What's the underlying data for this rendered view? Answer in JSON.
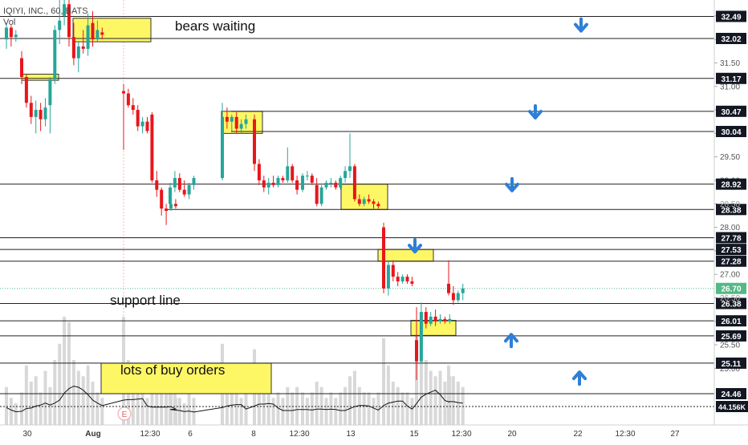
{
  "header": {
    "title": "IQIYI, INC., 60, BATS",
    "volume_label": "Vol"
  },
  "colors": {
    "up": "#26a69a",
    "down": "#e8161c",
    "highlight": "#fdf765",
    "arrow": "#2e7fd6",
    "level": "#222222",
    "axis_text": "#333333",
    "vol": "#d8d8d8",
    "current": "#53b987"
  },
  "chart_data": {
    "type": "candlestick",
    "ylim": [
      24.2,
      32.75
    ],
    "y_ticks": [
      25.0,
      25.5,
      26.0,
      26.5,
      27.0,
      27.5,
      28.0,
      28.5,
      29.0,
      29.5,
      30.0,
      30.5,
      31.0,
      31.5,
      32.0,
      32.5
    ],
    "x_ticks": [
      "30",
      "Aug",
      "12:30",
      "6",
      "8",
      "12:30",
      "13",
      "15",
      "12:30",
      "20",
      "22",
      "12:30",
      "27"
    ],
    "price_levels": [
      32.49,
      32.02,
      31.17,
      30.47,
      30.04,
      28.92,
      28.38,
      27.78,
      27.53,
      27.28,
      26.38,
      26.01,
      25.69,
      25.11,
      24.46
    ],
    "current_price": 26.7,
    "faint_labels": [
      "26.50",
      "28.50"
    ],
    "volume_value": "44.156K",
    "annotations": [
      {
        "text": "bears waiting"
      },
      {
        "text": "support line"
      },
      {
        "text": "lots of buy orders"
      }
    ],
    "arrows": [
      {
        "dir": "down",
        "price": 32.3
      },
      {
        "dir": "down",
        "price": 30.45
      },
      {
        "dir": "down",
        "price": 28.9
      },
      {
        "dir": "down",
        "price": 27.6
      },
      {
        "dir": "up",
        "price": 25.6
      },
      {
        "dir": "up",
        "price": 24.8
      }
    ],
    "zones": [
      {
        "from": 31.95,
        "to": 32.45
      },
      {
        "from": 31.13,
        "to": 31.26
      },
      {
        "from": 30.0,
        "to": 30.47
      },
      {
        "from": 28.38,
        "to": 28.92
      },
      {
        "from": 27.28,
        "to": 27.53
      },
      {
        "from": 25.7,
        "to": 26.02
      }
    ],
    "candles": [
      {
        "o": 32.0,
        "h": 32.35,
        "l": 31.8,
        "c": 32.25
      },
      {
        "o": 32.25,
        "h": 32.3,
        "l": 31.85,
        "c": 32.05
      },
      {
        "o": 32.05,
        "h": 32.2,
        "l": 31.95,
        "c": 32.1
      },
      {
        "o": 31.6,
        "h": 31.75,
        "l": 31.05,
        "c": 31.2
      },
      {
        "o": 31.2,
        "h": 31.25,
        "l": 30.55,
        "c": 30.65
      },
      {
        "o": 30.65,
        "h": 30.8,
        "l": 30.2,
        "c": 30.35
      },
      {
        "o": 30.35,
        "h": 30.7,
        "l": 30.0,
        "c": 30.5
      },
      {
        "o": 30.5,
        "h": 30.65,
        "l": 30.05,
        "c": 30.3
      },
      {
        "o": 30.3,
        "h": 30.75,
        "l": 30.15,
        "c": 30.55
      },
      {
        "o": 30.6,
        "h": 31.2,
        "l": 30.0,
        "c": 31.15
      },
      {
        "o": 31.15,
        "h": 32.3,
        "l": 31.05,
        "c": 32.2
      },
      {
        "o": 32.2,
        "h": 32.9,
        "l": 31.9,
        "c": 32.4
      },
      {
        "o": 32.5,
        "h": 33.0,
        "l": 32.3,
        "c": 32.75
      },
      {
        "o": 32.75,
        "h": 32.85,
        "l": 31.85,
        "c": 32.05
      },
      {
        "o": 32.05,
        "h": 32.35,
        "l": 31.45,
        "c": 31.6
      },
      {
        "o": 31.6,
        "h": 31.95,
        "l": 31.3,
        "c": 31.85
      },
      {
        "o": 31.85,
        "h": 32.2,
        "l": 31.7,
        "c": 31.8
      },
      {
        "o": 31.8,
        "h": 32.55,
        "l": 31.65,
        "c": 32.3
      },
      {
        "o": 32.35,
        "h": 32.6,
        "l": 31.85,
        "c": 32.0
      },
      {
        "o": 32.0,
        "h": 32.4,
        "l": 31.95,
        "c": 32.2
      },
      {
        "o": 32.15,
        "h": 32.25,
        "l": 32.0,
        "c": 32.1
      },
      {
        "o": 30.9,
        "h": 31.05,
        "l": 29.65,
        "c": 30.85
      },
      {
        "o": 30.85,
        "h": 30.95,
        "l": 30.55,
        "c": 30.6
      },
      {
        "o": 30.6,
        "h": 30.75,
        "l": 30.4,
        "c": 30.5
      },
      {
        "o": 30.5,
        "h": 30.6,
        "l": 30.05,
        "c": 30.15
      },
      {
        "o": 30.15,
        "h": 30.35,
        "l": 30.0,
        "c": 30.25
      },
      {
        "o": 30.25,
        "h": 30.35,
        "l": 30.0,
        "c": 30.05
      },
      {
        "o": 30.4,
        "h": 30.45,
        "l": 28.95,
        "c": 29.0
      },
      {
        "o": 29.0,
        "h": 29.2,
        "l": 28.65,
        "c": 28.8
      },
      {
        "o": 28.8,
        "h": 28.85,
        "l": 28.25,
        "c": 28.4
      },
      {
        "o": 28.4,
        "h": 28.5,
        "l": 28.05,
        "c": 28.35
      },
      {
        "o": 28.4,
        "h": 28.55,
        "l": 28.35,
        "c": 28.5
      },
      {
        "o": 28.5,
        "h": 28.6,
        "l": 28.4,
        "c": 28.45
      },
      {
        "o": 28.5,
        "h": 28.95,
        "l": 28.45,
        "c": 28.85
      },
      {
        "o": 28.85,
        "h": 29.2,
        "l": 28.75,
        "c": 29.05
      },
      {
        "o": 29.05,
        "h": 29.15,
        "l": 28.75,
        "c": 28.8
      },
      {
        "o": 28.8,
        "h": 29.0,
        "l": 28.65,
        "c": 28.7
      },
      {
        "o": 28.7,
        "h": 28.95,
        "l": 28.6,
        "c": 28.9
      },
      {
        "o": 28.9,
        "h": 29.1,
        "l": 28.8,
        "c": 29.05
      },
      {
        "o": 29.05,
        "h": 30.65,
        "l": 29.0,
        "c": 30.35
      },
      {
        "o": 30.35,
        "h": 30.55,
        "l": 30.1,
        "c": 30.25
      },
      {
        "o": 30.25,
        "h": 30.4,
        "l": 30.05,
        "c": 30.35
      },
      {
        "o": 30.35,
        "h": 30.45,
        "l": 30.0,
        "c": 30.1
      },
      {
        "o": 30.1,
        "h": 30.3,
        "l": 30.0,
        "c": 30.2
      },
      {
        "o": 30.2,
        "h": 30.4,
        "l": 30.1,
        "c": 30.3
      },
      {
        "o": 30.3,
        "h": 30.4,
        "l": 29.2,
        "c": 29.35
      },
      {
        "o": 29.35,
        "h": 29.45,
        "l": 28.9,
        "c": 29.0
      },
      {
        "o": 29.0,
        "h": 29.1,
        "l": 28.75,
        "c": 28.85
      },
      {
        "o": 28.85,
        "h": 29.05,
        "l": 28.7,
        "c": 28.95
      },
      {
        "o": 28.95,
        "h": 29.1,
        "l": 28.85,
        "c": 28.9
      },
      {
        "o": 28.9,
        "h": 29.1,
        "l": 28.85,
        "c": 29.05
      },
      {
        "o": 29.05,
        "h": 29.1,
        "l": 28.95,
        "c": 29.0
      },
      {
        "o": 29.0,
        "h": 29.7,
        "l": 28.95,
        "c": 29.3
      },
      {
        "o": 29.3,
        "h": 29.35,
        "l": 28.95,
        "c": 29.0
      },
      {
        "o": 29.0,
        "h": 29.1,
        "l": 28.7,
        "c": 28.8
      },
      {
        "o": 28.8,
        "h": 29.15,
        "l": 28.75,
        "c": 29.1
      },
      {
        "o": 29.1,
        "h": 29.2,
        "l": 29.0,
        "c": 29.1
      },
      {
        "o": 29.1,
        "h": 29.15,
        "l": 28.9,
        "c": 28.95
      },
      {
        "o": 28.9,
        "h": 29.05,
        "l": 28.45,
        "c": 28.5
      },
      {
        "o": 28.5,
        "h": 28.9,
        "l": 28.45,
        "c": 28.85
      },
      {
        "o": 28.85,
        "h": 29.0,
        "l": 28.8,
        "c": 28.95
      },
      {
        "o": 28.95,
        "h": 29.05,
        "l": 28.85,
        "c": 28.95
      },
      {
        "o": 28.95,
        "h": 29.0,
        "l": 28.8,
        "c": 28.85
      },
      {
        "o": 28.85,
        "h": 29.1,
        "l": 28.8,
        "c": 29.05
      },
      {
        "o": 29.05,
        "h": 29.3,
        "l": 28.95,
        "c": 29.2
      },
      {
        "o": 29.2,
        "h": 30.0,
        "l": 29.05,
        "c": 29.3
      },
      {
        "o": 29.3,
        "h": 29.35,
        "l": 28.55,
        "c": 28.6
      },
      {
        "o": 28.6,
        "h": 28.7,
        "l": 28.45,
        "c": 28.5
      },
      {
        "o": 28.5,
        "h": 28.65,
        "l": 28.45,
        "c": 28.6
      },
      {
        "o": 28.6,
        "h": 28.7,
        "l": 28.5,
        "c": 28.55
      },
      {
        "o": 28.55,
        "h": 28.6,
        "l": 28.4,
        "c": 28.5
      },
      {
        "o": 28.5,
        "h": 28.55,
        "l": 28.4,
        "c": 28.45
      },
      {
        "o": 28.0,
        "h": 28.1,
        "l": 26.6,
        "c": 26.7
      },
      {
        "o": 26.7,
        "h": 27.3,
        "l": 26.55,
        "c": 27.2
      },
      {
        "o": 27.2,
        "h": 27.3,
        "l": 26.85,
        "c": 26.95
      },
      {
        "o": 26.95,
        "h": 27.05,
        "l": 26.75,
        "c": 26.85
      },
      {
        "o": 26.85,
        "h": 27.0,
        "l": 26.8,
        "c": 26.95
      },
      {
        "o": 26.95,
        "h": 27.0,
        "l": 26.8,
        "c": 26.85
      },
      {
        "o": 26.85,
        "h": 26.95,
        "l": 26.75,
        "c": 26.8
      },
      {
        "o": 25.6,
        "h": 26.3,
        "l": 24.75,
        "c": 25.15
      },
      {
        "o": 25.15,
        "h": 26.4,
        "l": 25.1,
        "c": 26.2
      },
      {
        "o": 26.2,
        "h": 26.3,
        "l": 25.85,
        "c": 25.95
      },
      {
        "o": 25.95,
        "h": 26.2,
        "l": 25.9,
        "c": 26.1
      },
      {
        "o": 26.1,
        "h": 26.25,
        "l": 25.9,
        "c": 26.0
      },
      {
        "o": 26.0,
        "h": 26.15,
        "l": 25.95,
        "c": 26.05
      },
      {
        "o": 26.05,
        "h": 26.1,
        "l": 25.95,
        "c": 26.0
      },
      {
        "o": 26.0,
        "h": 26.15,
        "l": 25.95,
        "c": 26.05
      },
      {
        "o": 26.8,
        "h": 27.3,
        "l": 26.55,
        "c": 26.6
      },
      {
        "o": 26.6,
        "h": 26.75,
        "l": 26.35,
        "c": 26.45
      },
      {
        "o": 26.45,
        "h": 26.65,
        "l": 26.4,
        "c": 26.6
      },
      {
        "o": 26.6,
        "h": 26.8,
        "l": 26.45,
        "c": 26.7
      }
    ],
    "volumes": [
      0.35,
      0.25,
      0.2,
      0.3,
      0.55,
      0.4,
      0.45,
      0.3,
      0.5,
      0.35,
      0.6,
      0.75,
      1.0,
      0.95,
      0.6,
      0.5,
      0.45,
      0.55,
      0.4,
      0.3,
      0.25,
      1.0,
      0.6,
      0.4,
      0.35,
      0.3,
      0.25,
      0.5,
      0.4,
      0.35,
      0.3,
      0.3,
      0.25,
      0.35,
      0.3,
      0.25,
      0.2,
      0.3,
      0.25,
      0.75,
      0.4,
      0.3,
      0.35,
      0.25,
      0.3,
      0.7,
      0.5,
      0.35,
      0.3,
      0.25,
      0.3,
      0.25,
      0.35,
      0.3,
      0.35,
      0.3,
      0.25,
      0.3,
      0.4,
      0.35,
      0.25,
      0.3,
      0.25,
      0.3,
      0.35,
      0.45,
      0.5,
      0.35,
      0.3,
      0.3,
      0.25,
      0.3,
      0.8,
      0.55,
      0.4,
      0.35,
      0.3,
      0.3,
      0.25,
      0.95,
      1.0,
      0.6,
      0.5,
      0.45,
      0.5,
      0.4,
      0.45,
      0.55,
      0.45,
      0.4,
      0.35
    ]
  }
}
